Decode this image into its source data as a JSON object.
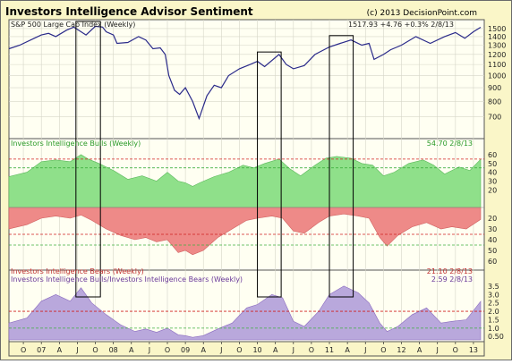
{
  "header": {
    "title": "Investors Intelligence Advisor Sentiment",
    "copyright": "(c) 2013 DecisionPoint.com"
  },
  "colors": {
    "background": "#faf6c8",
    "plot_bg": "#fffff2",
    "price_line": "#2a2a8a",
    "bulls_fill": "#8fe08a",
    "bears_fill": "#ee8a88",
    "ratio_fill": "#b9a8dc",
    "label_green": "#2a9a2a",
    "label_red": "#c03030",
    "label_purple": "#6a3a9a",
    "ref_red": "#d02020",
    "ref_green": "#40b040"
  },
  "chart_data": [
    {
      "type": "line",
      "title": "S&P 500 Large Cap Index (Weekly)",
      "last_value_label": "1517.93 +4.76 +0.3% 2/8/13",
      "scale": "log",
      "ylim": [
        580,
        1620
      ],
      "y_ticks": [
        700,
        800,
        900,
        1000,
        1100,
        1200,
        1300,
        1400,
        1500
      ],
      "x_range_years": [
        2006.55,
        2013.15
      ],
      "series": [
        {
          "points": [
            [
              2006.55,
              1260
            ],
            [
              2006.7,
              1300
            ],
            [
              2006.9,
              1380
            ],
            [
              2007.0,
              1420
            ],
            [
              2007.1,
              1440
            ],
            [
              2007.2,
              1400
            ],
            [
              2007.35,
              1480
            ],
            [
              2007.45,
              1520
            ],
            [
              2007.55,
              1460
            ],
            [
              2007.62,
              1420
            ],
            [
              2007.75,
              1530
            ],
            [
              2007.85,
              1520
            ],
            [
              2007.9,
              1460
            ],
            [
              2008.0,
              1420
            ],
            [
              2008.05,
              1320
            ],
            [
              2008.2,
              1330
            ],
            [
              2008.35,
              1400
            ],
            [
              2008.45,
              1360
            ],
            [
              2008.55,
              1260
            ],
            [
              2008.65,
              1270
            ],
            [
              2008.72,
              1200
            ],
            [
              2008.77,
              1000
            ],
            [
              2008.85,
              880
            ],
            [
              2008.92,
              850
            ],
            [
              2009.0,
              900
            ],
            [
              2009.1,
              800
            ],
            [
              2009.19,
              690
            ],
            [
              2009.3,
              840
            ],
            [
              2009.4,
              920
            ],
            [
              2009.5,
              900
            ],
            [
              2009.6,
              1000
            ],
            [
              2009.75,
              1060
            ],
            [
              2009.9,
              1100
            ],
            [
              2010.0,
              1130
            ],
            [
              2010.1,
              1080
            ],
            [
              2010.3,
              1200
            ],
            [
              2010.4,
              1100
            ],
            [
              2010.5,
              1060
            ],
            [
              2010.65,
              1090
            ],
            [
              2010.8,
              1200
            ],
            [
              2011.0,
              1280
            ],
            [
              2011.15,
              1320
            ],
            [
              2011.3,
              1360
            ],
            [
              2011.45,
              1300
            ],
            [
              2011.55,
              1320
            ],
            [
              2011.62,
              1150
            ],
            [
              2011.75,
              1200
            ],
            [
              2011.85,
              1250
            ],
            [
              2012.0,
              1300
            ],
            [
              2012.2,
              1400
            ],
            [
              2012.4,
              1320
            ],
            [
              2012.6,
              1400
            ],
            [
              2012.75,
              1450
            ],
            [
              2012.88,
              1380
            ],
            [
              2013.0,
              1460
            ],
            [
              2013.1,
              1517
            ]
          ]
        }
      ]
    },
    {
      "type": "area",
      "title": "Investors Intelligence Bulls (Weekly)",
      "last_value_label": "54.70 2/8/13",
      "ylim": [
        0,
        65
      ],
      "y_ticks": [
        20,
        30,
        40,
        50,
        60
      ],
      "reference_lines": [
        {
          "value": 55,
          "color": "red"
        },
        {
          "value": 45,
          "color": "green"
        }
      ],
      "series": [
        {
          "name": "Bulls",
          "points": [
            [
              2006.55,
              35
            ],
            [
              2006.8,
              40
            ],
            [
              2007.0,
              52
            ],
            [
              2007.2,
              54
            ],
            [
              2007.4,
              52
            ],
            [
              2007.55,
              60
            ],
            [
              2007.65,
              55
            ],
            [
              2007.8,
              50
            ],
            [
              2008.0,
              42
            ],
            [
              2008.2,
              32
            ],
            [
              2008.4,
              36
            ],
            [
              2008.6,
              30
            ],
            [
              2008.75,
              40
            ],
            [
              2008.9,
              30
            ],
            [
              2009.0,
              28
            ],
            [
              2009.1,
              24
            ],
            [
              2009.2,
              28
            ],
            [
              2009.4,
              35
            ],
            [
              2009.6,
              40
            ],
            [
              2009.8,
              48
            ],
            [
              2009.95,
              45
            ],
            [
              2010.1,
              50
            ],
            [
              2010.3,
              55
            ],
            [
              2010.45,
              44
            ],
            [
              2010.6,
              36
            ],
            [
              2010.8,
              48
            ],
            [
              2010.95,
              56
            ],
            [
              2011.1,
              58
            ],
            [
              2011.3,
              56
            ],
            [
              2011.45,
              50
            ],
            [
              2011.6,
              48
            ],
            [
              2011.75,
              36
            ],
            [
              2011.9,
              40
            ],
            [
              2012.1,
              50
            ],
            [
              2012.3,
              54
            ],
            [
              2012.45,
              48
            ],
            [
              2012.6,
              38
            ],
            [
              2012.8,
              46
            ],
            [
              2012.95,
              42
            ],
            [
              2013.1,
              54.7
            ]
          ]
        }
      ]
    },
    {
      "type": "area",
      "title": "Investors Intelligence Bears (Weekly)",
      "last_value_label": "21.10 2/8/13",
      "ylim": [
        10,
        65
      ],
      "y_ticks": [
        20,
        30,
        40,
        50,
        60
      ],
      "inverted": true,
      "reference_lines": [
        {
          "value": 35,
          "color": "red"
        },
        {
          "value": 45,
          "color": "green"
        }
      ],
      "series": [
        {
          "name": "Bears",
          "points": [
            [
              2006.55,
              30
            ],
            [
              2006.8,
              26
            ],
            [
              2007.0,
              20
            ],
            [
              2007.2,
              18
            ],
            [
              2007.4,
              20
            ],
            [
              2007.55,
              17
            ],
            [
              2007.7,
              22
            ],
            [
              2007.9,
              30
            ],
            [
              2008.1,
              36
            ],
            [
              2008.3,
              40
            ],
            [
              2008.45,
              38
            ],
            [
              2008.6,
              42
            ],
            [
              2008.75,
              40
            ],
            [
              2008.9,
              52
            ],
            [
              2009.0,
              50
            ],
            [
              2009.1,
              54
            ],
            [
              2009.25,
              50
            ],
            [
              2009.45,
              38
            ],
            [
              2009.65,
              30
            ],
            [
              2009.85,
              22
            ],
            [
              2010.0,
              20
            ],
            [
              2010.2,
              18
            ],
            [
              2010.35,
              20
            ],
            [
              2010.5,
              32
            ],
            [
              2010.65,
              34
            ],
            [
              2010.85,
              24
            ],
            [
              2011.0,
              18
            ],
            [
              2011.2,
              16
            ],
            [
              2011.4,
              18
            ],
            [
              2011.55,
              20
            ],
            [
              2011.7,
              38
            ],
            [
              2011.8,
              46
            ],
            [
              2011.95,
              36
            ],
            [
              2012.15,
              28
            ],
            [
              2012.35,
              24
            ],
            [
              2012.55,
              30
            ],
            [
              2012.7,
              28
            ],
            [
              2012.9,
              30
            ],
            [
              2013.1,
              21.1
            ]
          ]
        }
      ]
    },
    {
      "type": "area",
      "title": "Investors Intelligence Bulls/Investors Intelligence Bears (Weekly)",
      "last_value_label": "2.59 2/8/13",
      "ylim": [
        0.3,
        3.6
      ],
      "y_ticks": [
        0.5,
        1.0,
        1.5,
        2.0,
        2.5,
        3.0,
        3.5
      ],
      "y_tick_labels": [
        "0.50",
        "1.0",
        "1.5",
        "2.0",
        "2.5",
        "3.0",
        "3.5"
      ],
      "reference_lines": [
        {
          "value": 2.0,
          "color": "red"
        },
        {
          "value": 1.0,
          "color": "green"
        }
      ],
      "series": [
        {
          "name": "Bulls/Bears",
          "points": [
            [
              2006.55,
              1.3
            ],
            [
              2006.8,
              1.6
            ],
            [
              2007.0,
              2.6
            ],
            [
              2007.2,
              3.0
            ],
            [
              2007.4,
              2.6
            ],
            [
              2007.55,
              3.4
            ],
            [
              2007.7,
              2.5
            ],
            [
              2007.9,
              1.8
            ],
            [
              2008.1,
              1.2
            ],
            [
              2008.3,
              0.8
            ],
            [
              2008.45,
              0.95
            ],
            [
              2008.6,
              0.75
            ],
            [
              2008.75,
              1.0
            ],
            [
              2008.9,
              0.6
            ],
            [
              2009.0,
              0.55
            ],
            [
              2009.1,
              0.45
            ],
            [
              2009.25,
              0.55
            ],
            [
              2009.45,
              0.95
            ],
            [
              2009.65,
              1.3
            ],
            [
              2009.85,
              2.2
            ],
            [
              2010.0,
              2.4
            ],
            [
              2010.2,
              3.0
            ],
            [
              2010.35,
              2.8
            ],
            [
              2010.5,
              1.4
            ],
            [
              2010.65,
              1.1
            ],
            [
              2010.85,
              2.0
            ],
            [
              2011.0,
              3.0
            ],
            [
              2011.2,
              3.5
            ],
            [
              2011.4,
              3.1
            ],
            [
              2011.55,
              2.5
            ],
            [
              2011.7,
              1.3
            ],
            [
              2011.8,
              0.8
            ],
            [
              2011.95,
              1.1
            ],
            [
              2012.15,
              1.8
            ],
            [
              2012.35,
              2.2
            ],
            [
              2012.55,
              1.3
            ],
            [
              2012.7,
              1.4
            ],
            [
              2012.9,
              1.5
            ],
            [
              2013.1,
              2.59
            ]
          ]
        }
      ]
    }
  ],
  "x_axis": {
    "ticks": [
      {
        "t": 2006.5,
        "label": "J"
      },
      {
        "t": 2006.75,
        "label": "O"
      },
      {
        "t": 2007.0,
        "label": "07"
      },
      {
        "t": 2007.25,
        "label": "A"
      },
      {
        "t": 2007.5,
        "label": "J"
      },
      {
        "t": 2007.75,
        "label": "O"
      },
      {
        "t": 2008.0,
        "label": "08"
      },
      {
        "t": 2008.25,
        "label": "A"
      },
      {
        "t": 2008.5,
        "label": "J"
      },
      {
        "t": 2008.75,
        "label": "O"
      },
      {
        "t": 2009.0,
        "label": "09"
      },
      {
        "t": 2009.25,
        "label": "A"
      },
      {
        "t": 2009.5,
        "label": "J"
      },
      {
        "t": 2009.75,
        "label": "O"
      },
      {
        "t": 2010.0,
        "label": "10"
      },
      {
        "t": 2010.25,
        "label": "A"
      },
      {
        "t": 2010.5,
        "label": "J"
      },
      {
        "t": 2010.75,
        "label": "O"
      },
      {
        "t": 2011.0,
        "label": "11"
      },
      {
        "t": 2011.25,
        "label": "A"
      },
      {
        "t": 2011.5,
        "label": "J"
      },
      {
        "t": 2011.75,
        "label": "O"
      },
      {
        "t": 2012.0,
        "label": "12"
      },
      {
        "t": 2012.25,
        "label": "A"
      },
      {
        "t": 2012.5,
        "label": "J"
      },
      {
        "t": 2012.75,
        "label": "O"
      },
      {
        "t": 2013.0,
        "label": "13"
      }
    ]
  },
  "highlight_boxes": [
    {
      "t0": 2007.48,
      "t1": 2007.82
    },
    {
      "t0": 2010.0,
      "t1": 2010.33
    },
    {
      "t0": 2011.0,
      "t1": 2011.33
    }
  ]
}
